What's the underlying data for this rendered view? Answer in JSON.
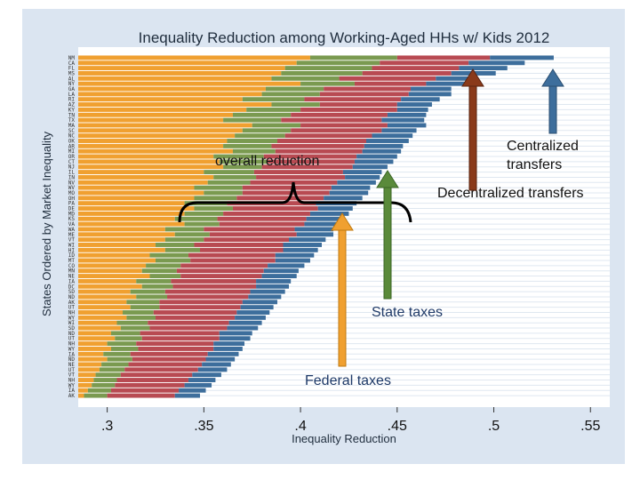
{
  "chart_data": {
    "type": "bar",
    "orientation": "horizontal-stacked",
    "title": "Inequality Reduction among Working-Aged HHs w/ Kids 2012",
    "xlabel": "Inequality Reduction",
    "ylabel": "States Ordered by Market Inequality",
    "xlim": [
      0.285,
      0.56
    ],
    "xticks": [
      ".3",
      ".35",
      ".4",
      ".45",
      ".5",
      ".55"
    ],
    "xtick_values": [
      0.3,
      0.35,
      0.4,
      0.45,
      0.5,
      0.55
    ],
    "grid": "horizontal",
    "series": [
      {
        "name": "Federal taxes",
        "color": "#f0a030"
      },
      {
        "name": "State taxes",
        "color": "#7a9a50"
      },
      {
        "name": "Decentralized transfers",
        "color": "#b84a52"
      },
      {
        "name": "Centralized transfers",
        "color": "#3d6e9c"
      }
    ],
    "states": [
      "NM",
      "CA",
      "FL",
      "MS",
      "AL",
      "NY",
      "GA",
      "LA",
      "RI",
      "AZ",
      "KY",
      "TN",
      "TX",
      "MA",
      "SC",
      "NC",
      "OK",
      "AR",
      "MI",
      "OR",
      "CT",
      "NJ",
      "IL",
      "IN",
      "NV",
      "WV",
      "MO",
      "OH",
      "PA",
      "DE",
      "MD",
      "KS",
      "VA",
      "WA",
      "ME",
      "VT",
      "WI",
      "HI",
      "ID",
      "MT",
      "CO",
      "MN",
      "NE",
      "IA",
      "DC",
      "SD",
      "ND",
      "AK",
      "UT",
      "NH",
      "WY",
      "WI",
      "SD",
      "ND",
      "UT",
      "NH",
      "WY",
      "IA",
      "ND",
      "NE",
      "UT",
      "VT",
      "NH",
      "WY",
      "IA",
      "AK"
    ],
    "rows": [
      {
        "federal": 0.405,
        "state": 0.045,
        "decentralized": 0.048,
        "centralized": 0.033
      },
      {
        "federal": 0.398,
        "state": 0.043,
        "decentralized": 0.046,
        "centralized": 0.029
      },
      {
        "federal": 0.392,
        "state": 0.045,
        "decentralized": 0.045,
        "centralized": 0.025
      },
      {
        "federal": 0.39,
        "state": 0.042,
        "decentralized": 0.046,
        "centralized": 0.023
      },
      {
        "federal": 0.385,
        "state": 0.035,
        "decentralized": 0.05,
        "centralized": 0.02
      },
      {
        "federal": 0.4,
        "state": 0.028,
        "decentralized": 0.037,
        "centralized": 0.02
      },
      {
        "federal": 0.382,
        "state": 0.03,
        "decentralized": 0.045,
        "centralized": 0.021
      },
      {
        "federal": 0.38,
        "state": 0.03,
        "decentralized": 0.046,
        "centralized": 0.022
      },
      {
        "federal": 0.37,
        "state": 0.032,
        "decentralized": 0.05,
        "centralized": 0.02
      },
      {
        "federal": 0.385,
        "state": 0.025,
        "decentralized": 0.04,
        "centralized": 0.018
      },
      {
        "federal": 0.372,
        "state": 0.028,
        "decentralized": 0.05,
        "centralized": 0.016
      },
      {
        "federal": 0.365,
        "state": 0.03,
        "decentralized": 0.05,
        "centralized": 0.02
      },
      {
        "federal": 0.36,
        "state": 0.03,
        "decentralized": 0.052,
        "centralized": 0.022
      },
      {
        "federal": 0.375,
        "state": 0.025,
        "decentralized": 0.045,
        "centralized": 0.02
      },
      {
        "federal": 0.37,
        "state": 0.025,
        "decentralized": 0.047,
        "centralized": 0.018
      },
      {
        "federal": 0.366,
        "state": 0.026,
        "decentralized": 0.045,
        "centralized": 0.021
      },
      {
        "federal": 0.362,
        "state": 0.026,
        "decentralized": 0.046,
        "centralized": 0.022
      },
      {
        "federal": 0.36,
        "state": 0.025,
        "decentralized": 0.048,
        "centralized": 0.02
      },
      {
        "federal": 0.365,
        "state": 0.022,
        "decentralized": 0.045,
        "centralized": 0.02
      },
      {
        "federal": 0.355,
        "state": 0.026,
        "decentralized": 0.048,
        "centralized": 0.021
      },
      {
        "federal": 0.358,
        "state": 0.025,
        "decentralized": 0.045,
        "centralized": 0.02
      },
      {
        "federal": 0.36,
        "state": 0.02,
        "decentralized": 0.047,
        "centralized": 0.018
      },
      {
        "federal": 0.35,
        "state": 0.026,
        "decentralized": 0.046,
        "centralized": 0.02
      },
      {
        "federal": 0.355,
        "state": 0.022,
        "decentralized": 0.046,
        "centralized": 0.018
      },
      {
        "federal": 0.352,
        "state": 0.022,
        "decentralized": 0.045,
        "centralized": 0.02
      },
      {
        "federal": 0.345,
        "state": 0.025,
        "decentralized": 0.046,
        "centralized": 0.02
      },
      {
        "federal": 0.35,
        "state": 0.02,
        "decentralized": 0.045,
        "centralized": 0.02
      },
      {
        "federal": 0.345,
        "state": 0.022,
        "decentralized": 0.045,
        "centralized": 0.02
      },
      {
        "federal": 0.34,
        "state": 0.022,
        "decentralized": 0.046,
        "centralized": 0.021
      },
      {
        "federal": 0.345,
        "state": 0.02,
        "decentralized": 0.044,
        "centralized": 0.018
      },
      {
        "federal": 0.34,
        "state": 0.02,
        "decentralized": 0.045,
        "centralized": 0.02
      },
      {
        "federal": 0.335,
        "state": 0.022,
        "decentralized": 0.046,
        "centralized": 0.02
      },
      {
        "federal": 0.34,
        "state": 0.018,
        "decentralized": 0.044,
        "centralized": 0.019
      },
      {
        "federal": 0.33,
        "state": 0.02,
        "decentralized": 0.047,
        "centralized": 0.02
      },
      {
        "federal": 0.335,
        "state": 0.018,
        "decentralized": 0.045,
        "centralized": 0.019
      },
      {
        "federal": 0.33,
        "state": 0.02,
        "decentralized": 0.044,
        "centralized": 0.019
      },
      {
        "federal": 0.325,
        "state": 0.02,
        "decentralized": 0.046,
        "centralized": 0.02
      },
      {
        "federal": 0.33,
        "state": 0.018,
        "decentralized": 0.043,
        "centralized": 0.018
      },
      {
        "federal": 0.322,
        "state": 0.02,
        "decentralized": 0.045,
        "centralized": 0.02
      },
      {
        "federal": 0.325,
        "state": 0.018,
        "decentralized": 0.044,
        "centralized": 0.018
      },
      {
        "federal": 0.32,
        "state": 0.018,
        "decentralized": 0.045,
        "centralized": 0.019
      },
      {
        "federal": 0.318,
        "state": 0.018,
        "decentralized": 0.045,
        "centralized": 0.018
      },
      {
        "federal": 0.322,
        "state": 0.016,
        "decentralized": 0.042,
        "centralized": 0.018
      },
      {
        "federal": 0.315,
        "state": 0.018,
        "decentralized": 0.044,
        "centralized": 0.018
      },
      {
        "federal": 0.318,
        "state": 0.016,
        "decentralized": 0.043,
        "centralized": 0.017
      },
      {
        "federal": 0.312,
        "state": 0.018,
        "decentralized": 0.044,
        "centralized": 0.018
      },
      {
        "federal": 0.315,
        "state": 0.016,
        "decentralized": 0.042,
        "centralized": 0.017
      },
      {
        "federal": 0.31,
        "state": 0.017,
        "decentralized": 0.043,
        "centralized": 0.018
      },
      {
        "federal": 0.312,
        "state": 0.015,
        "decentralized": 0.042,
        "centralized": 0.017
      },
      {
        "federal": 0.308,
        "state": 0.016,
        "decentralized": 0.043,
        "centralized": 0.017
      },
      {
        "federal": 0.31,
        "state": 0.015,
        "decentralized": 0.041,
        "centralized": 0.016
      },
      {
        "federal": 0.305,
        "state": 0.016,
        "decentralized": 0.042,
        "centralized": 0.017
      },
      {
        "federal": 0.307,
        "state": 0.015,
        "decentralized": 0.04,
        "centralized": 0.016
      },
      {
        "federal": 0.302,
        "state": 0.015,
        "decentralized": 0.041,
        "centralized": 0.017
      },
      {
        "federal": 0.304,
        "state": 0.014,
        "decentralized": 0.04,
        "centralized": 0.016
      },
      {
        "federal": 0.3,
        "state": 0.015,
        "decentralized": 0.04,
        "centralized": 0.016
      },
      {
        "federal": 0.302,
        "state": 0.014,
        "decentralized": 0.039,
        "centralized": 0.015
      },
      {
        "federal": 0.298,
        "state": 0.014,
        "decentralized": 0.04,
        "centralized": 0.016
      },
      {
        "federal": 0.3,
        "state": 0.013,
        "decentralized": 0.038,
        "centralized": 0.015
      },
      {
        "federal": 0.297,
        "state": 0.014,
        "decentralized": 0.038,
        "centralized": 0.015
      },
      {
        "federal": 0.296,
        "state": 0.013,
        "decentralized": 0.038,
        "centralized": 0.015
      },
      {
        "federal": 0.294,
        "state": 0.013,
        "decentralized": 0.037,
        "centralized": 0.015
      },
      {
        "federal": 0.293,
        "state": 0.012,
        "decentralized": 0.037,
        "centralized": 0.014
      },
      {
        "federal": 0.292,
        "state": 0.012,
        "decentralized": 0.036,
        "centralized": 0.014
      },
      {
        "federal": 0.29,
        "state": 0.012,
        "decentralized": 0.035,
        "centralized": 0.014
      },
      {
        "federal": 0.288,
        "state": 0.012,
        "decentralized": 0.035,
        "centralized": 0.013
      }
    ],
    "annotations": {
      "overall": "overall reduction",
      "centralized": "Centralized\ntransfers",
      "decentralized": "Decentralized transfers",
      "state": "State taxes",
      "federal": "Federal taxes"
    }
  }
}
